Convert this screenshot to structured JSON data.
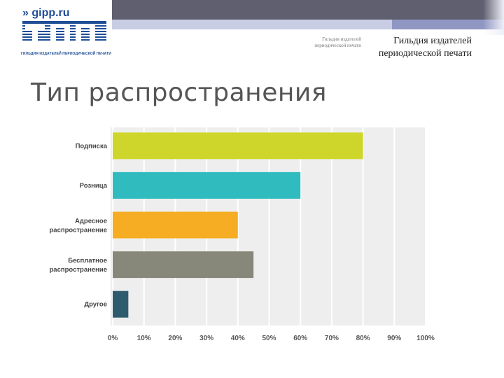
{
  "header": {
    "logo_url_text": "» gipp.ru",
    "logo_caption": "ГИЛЬДИЯ ИЗДАТЕЛЕЙ ПЕРИОДИЧЕСКОЙ ПЕЧАТИ",
    "guild_small_line1": "Гильдия издателей",
    "guild_small_line2": "периодической печати",
    "guild_big_line1": "Гильдия издателей",
    "guild_big_line2": "периодической печати"
  },
  "slide": {
    "title": "Тип распространения"
  },
  "colors": {
    "brand_blue": "#1f4e97",
    "plot_background": "#eeeeee"
  },
  "chart_data": {
    "type": "bar",
    "orientation": "horizontal",
    "categories": [
      [
        "Подписка"
      ],
      [
        "Розница"
      ],
      [
        "Адресное",
        "распространение"
      ],
      [
        "Бесплатное",
        "распространение"
      ],
      [
        "Другое"
      ]
    ],
    "values": [
      80,
      60,
      40,
      45,
      5
    ],
    "colors": [
      "#cfd62b",
      "#30bcbf",
      "#f6ad24",
      "#87887a",
      "#2e5c6e"
    ],
    "xlim": [
      0,
      100
    ],
    "ticks": [
      "0%",
      "10%",
      "20%",
      "30%",
      "40%",
      "50%",
      "60%",
      "70%",
      "80%",
      "90%",
      "100%"
    ],
    "grid": true
  }
}
